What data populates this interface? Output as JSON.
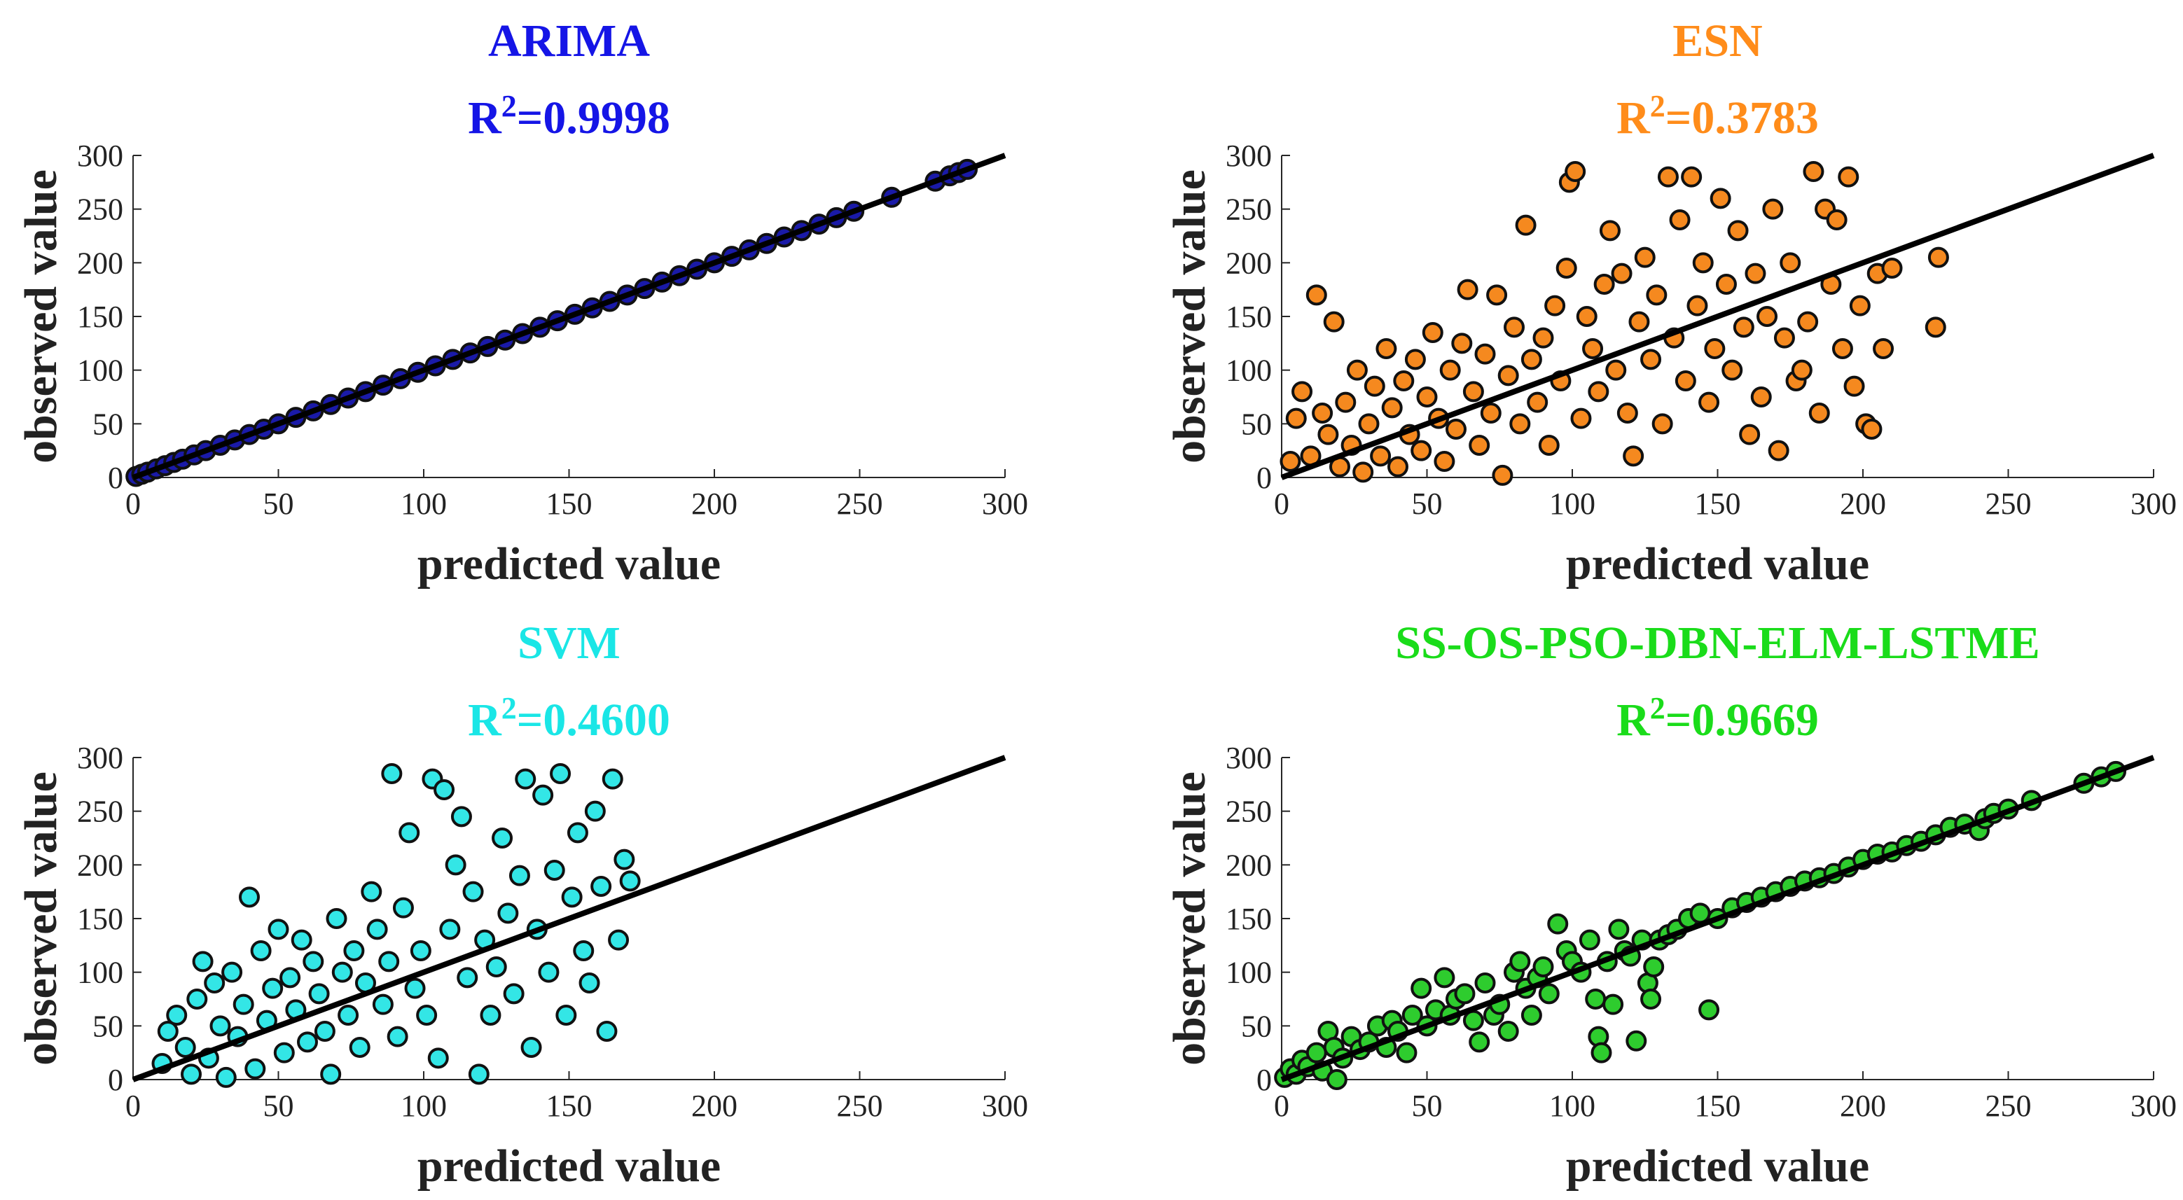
{
  "chart_data": [
    {
      "type": "scatter",
      "title": "ARIMA",
      "r2_prefix": "R",
      "r2_exp": "2",
      "r2_value": "=0.9998",
      "color": "#1515e6",
      "marker_fill": "#1a1aa8",
      "xlabel": "predicted value",
      "ylabel": "observed value",
      "xlim": [
        0,
        300
      ],
      "ylim": [
        0,
        300
      ],
      "xticks": [
        "0",
        "50",
        "100",
        "150",
        "200",
        "250",
        "300"
      ],
      "yticks": [
        "0",
        "50",
        "100",
        "150",
        "200",
        "250",
        "300"
      ],
      "reference_line": [
        [
          0,
          0
        ],
        [
          300,
          300
        ]
      ],
      "points": [
        [
          1,
          1
        ],
        [
          3,
          3
        ],
        [
          5,
          5
        ],
        [
          8,
          8
        ],
        [
          11,
          11
        ],
        [
          14,
          14
        ],
        [
          17,
          17
        ],
        [
          21,
          21
        ],
        [
          25,
          25
        ],
        [
          30,
          30
        ],
        [
          35,
          35
        ],
        [
          40,
          40
        ],
        [
          45,
          45
        ],
        [
          50,
          50
        ],
        [
          56,
          56
        ],
        [
          62,
          62
        ],
        [
          68,
          68
        ],
        [
          74,
          74
        ],
        [
          80,
          80
        ],
        [
          86,
          86
        ],
        [
          92,
          92
        ],
        [
          98,
          98
        ],
        [
          104,
          104
        ],
        [
          110,
          110
        ],
        [
          116,
          116
        ],
        [
          122,
          122
        ],
        [
          128,
          128
        ],
        [
          134,
          134
        ],
        [
          140,
          140
        ],
        [
          146,
          146
        ],
        [
          152,
          152
        ],
        [
          158,
          158
        ],
        [
          164,
          164
        ],
        [
          170,
          170
        ],
        [
          176,
          176
        ],
        [
          182,
          182
        ],
        [
          188,
          188
        ],
        [
          194,
          194
        ],
        [
          200,
          200
        ],
        [
          206,
          206
        ],
        [
          212,
          212
        ],
        [
          218,
          218
        ],
        [
          224,
          224
        ],
        [
          230,
          230
        ],
        [
          236,
          236
        ],
        [
          242,
          242
        ],
        [
          248,
          248
        ],
        [
          261,
          261
        ],
        [
          276,
          276
        ],
        [
          281,
          281
        ],
        [
          284,
          284
        ],
        [
          287,
          287
        ]
      ]
    },
    {
      "type": "scatter",
      "title": "ESN",
      "r2_prefix": "R",
      "r2_exp": "2",
      "r2_value": "=0.3783",
      "color": "#ff8c1a",
      "marker_fill": "#f5891f",
      "xlabel": "predicted value",
      "ylabel": "observed value",
      "xlim": [
        0,
        300
      ],
      "ylim": [
        0,
        300
      ],
      "xticks": [
        "0",
        "50",
        "100",
        "150",
        "200",
        "250",
        "300"
      ],
      "yticks": [
        "0",
        "50",
        "100",
        "150",
        "200",
        "250",
        "300"
      ],
      "reference_line": [
        [
          0,
          0
        ],
        [
          300,
          300
        ]
      ],
      "points": [
        [
          3,
          15
        ],
        [
          5,
          55
        ],
        [
          7,
          80
        ],
        [
          10,
          20
        ],
        [
          12,
          170
        ],
        [
          14,
          60
        ],
        [
          16,
          40
        ],
        [
          18,
          145
        ],
        [
          20,
          10
        ],
        [
          22,
          70
        ],
        [
          24,
          30
        ],
        [
          26,
          100
        ],
        [
          28,
          5
        ],
        [
          30,
          50
        ],
        [
          32,
          85
        ],
        [
          34,
          20
        ],
        [
          36,
          120
        ],
        [
          38,
          65
        ],
        [
          40,
          10
        ],
        [
          42,
          90
        ],
        [
          44,
          40
        ],
        [
          46,
          110
        ],
        [
          48,
          25
        ],
        [
          50,
          75
        ],
        [
          52,
          135
        ],
        [
          54,
          55
        ],
        [
          56,
          15
        ],
        [
          58,
          100
        ],
        [
          60,
          45
        ],
        [
          62,
          125
        ],
        [
          64,
          175
        ],
        [
          66,
          80
        ],
        [
          68,
          30
        ],
        [
          70,
          115
        ],
        [
          72,
          60
        ],
        [
          74,
          170
        ],
        [
          76,
          2
        ],
        [
          78,
          95
        ],
        [
          80,
          140
        ],
        [
          82,
          50
        ],
        [
          84,
          235
        ],
        [
          86,
          110
        ],
        [
          88,
          70
        ],
        [
          90,
          130
        ],
        [
          92,
          30
        ],
        [
          94,
          160
        ],
        [
          96,
          90
        ],
        [
          98,
          195
        ],
        [
          99,
          275
        ],
        [
          101,
          285
        ],
        [
          103,
          55
        ],
        [
          105,
          150
        ],
        [
          107,
          120
        ],
        [
          109,
          80
        ],
        [
          111,
          180
        ],
        [
          113,
          230
        ],
        [
          115,
          100
        ],
        [
          117,
          190
        ],
        [
          119,
          60
        ],
        [
          121,
          20
        ],
        [
          123,
          145
        ],
        [
          125,
          205
        ],
        [
          127,
          110
        ],
        [
          129,
          170
        ],
        [
          131,
          50
        ],
        [
          133,
          280
        ],
        [
          135,
          130
        ],
        [
          137,
          240
        ],
        [
          139,
          90
        ],
        [
          141,
          280
        ],
        [
          143,
          160
        ],
        [
          145,
          200
        ],
        [
          147,
          70
        ],
        [
          149,
          120
        ],
        [
          151,
          260
        ],
        [
          153,
          180
        ],
        [
          155,
          100
        ],
        [
          157,
          230
        ],
        [
          159,
          140
        ],
        [
          161,
          40
        ],
        [
          163,
          190
        ],
        [
          165,
          75
        ],
        [
          167,
          150
        ],
        [
          169,
          250
        ],
        [
          171,
          25
        ],
        [
          173,
          130
        ],
        [
          175,
          200
        ],
        [
          177,
          90
        ],
        [
          179,
          100
        ],
        [
          181,
          145
        ],
        [
          183,
          285
        ],
        [
          185,
          60
        ],
        [
          187,
          250
        ],
        [
          189,
          180
        ],
        [
          191,
          240
        ],
        [
          193,
          120
        ],
        [
          195,
          280
        ],
        [
          197,
          85
        ],
        [
          199,
          160
        ],
        [
          201,
          50
        ],
        [
          203,
          45
        ],
        [
          205,
          190
        ],
        [
          207,
          120
        ],
        [
          210,
          195
        ],
        [
          225,
          140
        ],
        [
          226,
          205
        ]
      ]
    },
    {
      "type": "scatter",
      "title": "SVM",
      "r2_prefix": "R",
      "r2_exp": "2",
      "r2_value": "=0.4600",
      "color": "#1ae6e6",
      "marker_fill": "#33e6e6",
      "xlabel": "predicted value",
      "ylabel": "observed value",
      "xlim": [
        0,
        300
      ],
      "ylim": [
        0,
        300
      ],
      "xticks": [
        "0",
        "50",
        "100",
        "150",
        "200",
        "250",
        "300"
      ],
      "yticks": [
        "0",
        "50",
        "100",
        "150",
        "200",
        "250",
        "300"
      ],
      "reference_line": [
        [
          0,
          0
        ],
        [
          300,
          300
        ]
      ],
      "points": [
        [
          10,
          15
        ],
        [
          12,
          45
        ],
        [
          15,
          60
        ],
        [
          18,
          30
        ],
        [
          20,
          5
        ],
        [
          22,
          75
        ],
        [
          24,
          110
        ],
        [
          26,
          20
        ],
        [
          28,
          90
        ],
        [
          30,
          50
        ],
        [
          32,
          2
        ],
        [
          34,
          100
        ],
        [
          36,
          40
        ],
        [
          38,
          70
        ],
        [
          40,
          170
        ],
        [
          42,
          10
        ],
        [
          44,
          120
        ],
        [
          46,
          55
        ],
        [
          48,
          85
        ],
        [
          50,
          140
        ],
        [
          52,
          25
        ],
        [
          54,
          95
        ],
        [
          56,
          65
        ],
        [
          58,
          130
        ],
        [
          60,
          35
        ],
        [
          62,
          110
        ],
        [
          64,
          80
        ],
        [
          66,
          45
        ],
        [
          68,
          5
        ],
        [
          70,
          150
        ],
        [
          72,
          100
        ],
        [
          74,
          60
        ],
        [
          76,
          120
        ],
        [
          78,
          30
        ],
        [
          80,
          90
        ],
        [
          82,
          175
        ],
        [
          84,
          140
        ],
        [
          86,
          70
        ],
        [
          88,
          110
        ],
        [
          89,
          285
        ],
        [
          91,
          40
        ],
        [
          93,
          160
        ],
        [
          95,
          230
        ],
        [
          97,
          85
        ],
        [
          99,
          120
        ],
        [
          101,
          60
        ],
        [
          103,
          280
        ],
        [
          105,
          20
        ],
        [
          107,
          270
        ],
        [
          109,
          140
        ],
        [
          111,
          200
        ],
        [
          113,
          245
        ],
        [
          115,
          95
        ],
        [
          117,
          175
        ],
        [
          119,
          5
        ],
        [
          121,
          130
        ],
        [
          123,
          60
        ],
        [
          125,
          105
        ],
        [
          127,
          225
        ],
        [
          129,
          155
        ],
        [
          131,
          80
        ],
        [
          133,
          190
        ],
        [
          135,
          280
        ],
        [
          137,
          30
        ],
        [
          139,
          140
        ],
        [
          141,
          265
        ],
        [
          143,
          100
        ],
        [
          145,
          195
        ],
        [
          147,
          285
        ],
        [
          149,
          60
        ],
        [
          151,
          170
        ],
        [
          153,
          230
        ],
        [
          155,
          120
        ],
        [
          157,
          90
        ],
        [
          159,
          250
        ],
        [
          161,
          180
        ],
        [
          163,
          45
        ],
        [
          165,
          280
        ],
        [
          167,
          130
        ],
        [
          169,
          205
        ],
        [
          171,
          185
        ]
      ]
    },
    {
      "type": "scatter",
      "title": "SS-OS-PSO-DBN-ELM-LSTME",
      "r2_prefix": "R",
      "r2_exp": "2",
      "r2_value": "=0.9669",
      "color": "#1adc1a",
      "marker_fill": "#2ecc2e",
      "xlabel": "predicted value",
      "ylabel": "observed value",
      "xlim": [
        0,
        300
      ],
      "ylim": [
        0,
        300
      ],
      "xticks": [
        "0",
        "50",
        "100",
        "150",
        "200",
        "250",
        "300"
      ],
      "yticks": [
        "0",
        "50",
        "100",
        "150",
        "200",
        "250",
        "300"
      ],
      "reference_line": [
        [
          0,
          0
        ],
        [
          300,
          300
        ]
      ],
      "points": [
        [
          1,
          2
        ],
        [
          3,
          10
        ],
        [
          5,
          5
        ],
        [
          7,
          18
        ],
        [
          9,
          12
        ],
        [
          12,
          25
        ],
        [
          14,
          8
        ],
        [
          16,
          45
        ],
        [
          18,
          30
        ],
        [
          19,
          0
        ],
        [
          21,
          20
        ],
        [
          24,
          40
        ],
        [
          27,
          28
        ],
        [
          30,
          35
        ],
        [
          33,
          50
        ],
        [
          36,
          30
        ],
        [
          38,
          55
        ],
        [
          40,
          45
        ],
        [
          43,
          25
        ],
        [
          45,
          60
        ],
        [
          48,
          85
        ],
        [
          50,
          50
        ],
        [
          53,
          65
        ],
        [
          56,
          95
        ],
        [
          58,
          60
        ],
        [
          60,
          75
        ],
        [
          63,
          80
        ],
        [
          66,
          55
        ],
        [
          68,
          35
        ],
        [
          70,
          90
        ],
        [
          73,
          60
        ],
        [
          75,
          70
        ],
        [
          78,
          45
        ],
        [
          80,
          100
        ],
        [
          82,
          110
        ],
        [
          84,
          85
        ],
        [
          86,
          60
        ],
        [
          88,
          95
        ],
        [
          90,
          105
        ],
        [
          92,
          80
        ],
        [
          95,
          145
        ],
        [
          98,
          120
        ],
        [
          100,
          110
        ],
        [
          103,
          100
        ],
        [
          106,
          130
        ],
        [
          108,
          75
        ],
        [
          109,
          40
        ],
        [
          110,
          25
        ],
        [
          112,
          110
        ],
        [
          114,
          70
        ],
        [
          116,
          140
        ],
        [
          118,
          120
        ],
        [
          120,
          115
        ],
        [
          122,
          36
        ],
        [
          124,
          130
        ],
        [
          126,
          90
        ],
        [
          127,
          75
        ],
        [
          128,
          105
        ],
        [
          130,
          130
        ],
        [
          133,
          135
        ],
        [
          136,
          140
        ],
        [
          140,
          150
        ],
        [
          144,
          155
        ],
        [
          147,
          65
        ],
        [
          150,
          150
        ],
        [
          155,
          160
        ],
        [
          160,
          165
        ],
        [
          165,
          170
        ],
        [
          170,
          175
        ],
        [
          175,
          180
        ],
        [
          180,
          185
        ],
        [
          185,
          188
        ],
        [
          190,
          192
        ],
        [
          195,
          198
        ],
        [
          200,
          205
        ],
        [
          205,
          210
        ],
        [
          210,
          212
        ],
        [
          215,
          218
        ],
        [
          220,
          222
        ],
        [
          225,
          228
        ],
        [
          230,
          235
        ],
        [
          235,
          238
        ],
        [
          240,
          232
        ],
        [
          242,
          243
        ],
        [
          245,
          248
        ],
        [
          250,
          252
        ],
        [
          258,
          260
        ],
        [
          276,
          276
        ],
        [
          282,
          282
        ],
        [
          287,
          287
        ]
      ]
    }
  ]
}
